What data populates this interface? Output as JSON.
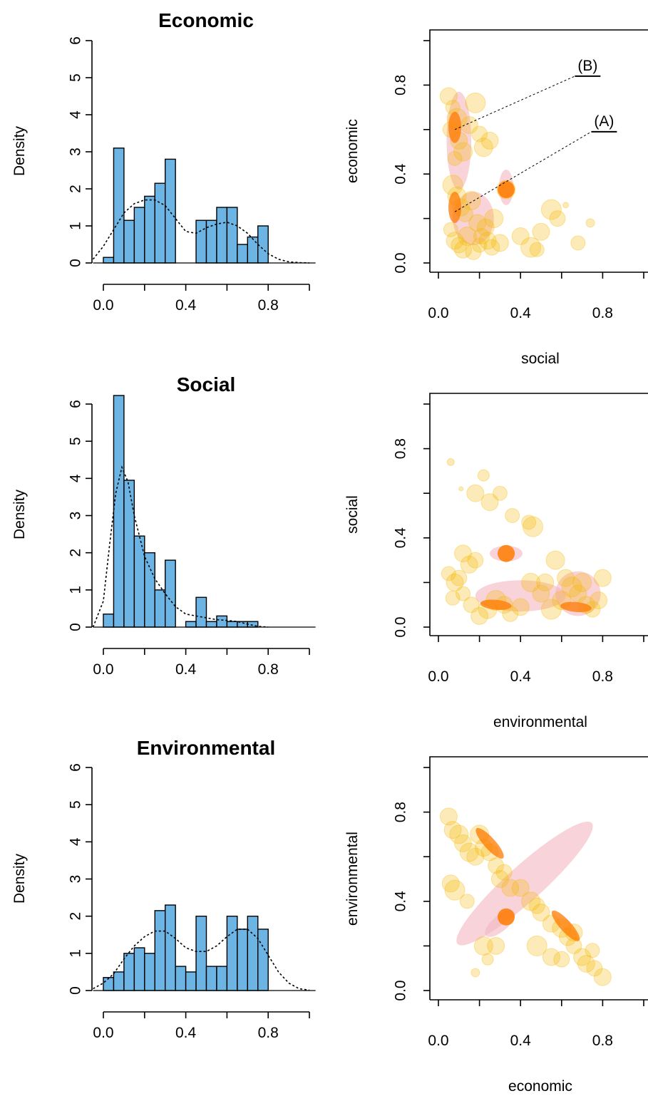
{
  "chart_data": [
    {
      "type": "bar",
      "title": "Economic",
      "ylabel": "Density",
      "xlim": [
        0,
        1
      ],
      "ylim": [
        0,
        6
      ],
      "x_ticks": [
        "0.0",
        "0.4",
        "0.8"
      ],
      "y_ticks": [
        "0",
        "1",
        "2",
        "3",
        "4",
        "5",
        "6"
      ],
      "bin_width": 0.05,
      "bins_start": [
        0.0,
        0.05,
        0.1,
        0.15,
        0.2,
        0.25,
        0.3,
        0.45,
        0.5,
        0.55,
        0.6,
        0.65,
        0.7,
        0.75
      ],
      "values": [
        0.15,
        3.1,
        1.15,
        1.5,
        1.8,
        2.15,
        2.8,
        1.15,
        1.15,
        1.5,
        1.5,
        0.5,
        0.7,
        1.0
      ],
      "density_curve": {
        "x": [
          -0.05,
          0.0,
          0.05,
          0.1,
          0.15,
          0.2,
          0.25,
          0.3,
          0.35,
          0.4,
          0.45,
          0.5,
          0.55,
          0.6,
          0.65,
          0.7,
          0.75,
          0.8,
          0.85,
          0.9,
          0.95,
          1.0
        ],
        "y": [
          0.1,
          0.45,
          0.9,
          1.35,
          1.6,
          1.7,
          1.7,
          1.55,
          1.2,
          0.85,
          0.8,
          0.95,
          1.05,
          1.1,
          1.0,
          0.8,
          0.5,
          0.25,
          0.1,
          0.03,
          0.01,
          0.0
        ]
      },
      "bar_color": "#6cb4e4",
      "curve_style": "dotted"
    },
    {
      "type": "bar",
      "title": "Social",
      "ylabel": "Density",
      "xlim": [
        0,
        1
      ],
      "ylim": [
        0,
        6
      ],
      "x_ticks": [
        "0.0",
        "0.4",
        "0.8"
      ],
      "y_ticks": [
        "0",
        "1",
        "2",
        "3",
        "4",
        "5",
        "6"
      ],
      "bin_width": 0.05,
      "bins_start": [
        0.0,
        0.05,
        0.1,
        0.15,
        0.2,
        0.25,
        0.3,
        0.4,
        0.45,
        0.5,
        0.55,
        0.6,
        0.65,
        0.7
      ],
      "values": [
        0.35,
        6.3,
        3.95,
        2.45,
        2.0,
        1.0,
        1.8,
        0.15,
        0.8,
        0.15,
        0.3,
        0.15,
        0.15,
        0.15
      ],
      "density_curve": {
        "x": [
          -0.05,
          0.0,
          0.03,
          0.06,
          0.09,
          0.12,
          0.15,
          0.2,
          0.25,
          0.3,
          0.35,
          0.4,
          0.45,
          0.5,
          0.55,
          0.6,
          0.65,
          0.7,
          0.75,
          0.8
        ],
        "y": [
          0.0,
          0.7,
          2.2,
          3.6,
          4.3,
          3.9,
          3.0,
          1.9,
          1.3,
          0.9,
          0.55,
          0.35,
          0.3,
          0.25,
          0.2,
          0.18,
          0.15,
          0.08,
          0.02,
          0.0
        ]
      },
      "bar_color": "#6cb4e4",
      "curve_style": "dotted"
    },
    {
      "type": "bar",
      "title": "Environmental",
      "ylabel": "Density",
      "xlim": [
        0,
        1
      ],
      "ylim": [
        0,
        6
      ],
      "x_ticks": [
        "0.0",
        "0.4",
        "0.8"
      ],
      "y_ticks": [
        "0",
        "1",
        "2",
        "3",
        "4",
        "5",
        "6"
      ],
      "bin_width": 0.05,
      "bins_start": [
        0.0,
        0.05,
        0.1,
        0.15,
        0.2,
        0.25,
        0.3,
        0.35,
        0.4,
        0.45,
        0.5,
        0.55,
        0.6,
        0.65,
        0.7,
        0.75
      ],
      "values": [
        0.35,
        0.5,
        1.0,
        1.15,
        1.0,
        2.15,
        2.3,
        0.65,
        0.5,
        2.0,
        0.65,
        0.65,
        2.0,
        1.65,
        2.0,
        1.65
      ],
      "density_curve": {
        "x": [
          -0.05,
          0.0,
          0.05,
          0.1,
          0.15,
          0.2,
          0.25,
          0.3,
          0.35,
          0.4,
          0.45,
          0.5,
          0.55,
          0.6,
          0.65,
          0.7,
          0.75,
          0.8,
          0.85,
          0.9,
          0.95,
          1.0
        ],
        "y": [
          0.05,
          0.2,
          0.45,
          0.85,
          1.2,
          1.45,
          1.6,
          1.6,
          1.4,
          1.15,
          1.05,
          1.05,
          1.2,
          1.45,
          1.65,
          1.65,
          1.4,
          0.95,
          0.5,
          0.2,
          0.05,
          0.01
        ]
      },
      "bar_color": "#6cb4e4",
      "curve_style": "dotted"
    },
    {
      "type": "scatter",
      "xlabel": "social",
      "ylabel": "economic",
      "xlim": [
        0,
        1
      ],
      "ylim": [
        0,
        1
      ],
      "x_ticks": [
        "0.0",
        "0.4",
        "0.8"
      ],
      "y_ticks": [
        "0.0",
        "0.4",
        "0.8"
      ],
      "points": {
        "x": [
          0.05,
          0.07,
          0.09,
          0.06,
          0.1,
          0.12,
          0.08,
          0.15,
          0.18,
          0.2,
          0.22,
          0.25,
          0.07,
          0.09,
          0.11,
          0.13,
          0.16,
          0.19,
          0.21,
          0.24,
          0.27,
          0.06,
          0.08,
          0.1,
          0.12,
          0.14,
          0.17,
          0.2,
          0.23,
          0.26,
          0.3,
          0.33,
          0.45,
          0.48,
          0.55,
          0.58,
          0.62,
          0.68,
          0.74,
          0.4,
          0.5
        ],
        "y": [
          0.75,
          0.7,
          0.65,
          0.6,
          0.55,
          0.5,
          0.47,
          0.62,
          0.72,
          0.58,
          0.52,
          0.55,
          0.35,
          0.3,
          0.25,
          0.22,
          0.28,
          0.18,
          0.12,
          0.1,
          0.2,
          0.15,
          0.1,
          0.08,
          0.06,
          0.12,
          0.05,
          0.08,
          0.16,
          0.07,
          0.09,
          0.33,
          0.07,
          0.06,
          0.24,
          0.2,
          0.26,
          0.09,
          0.18,
          0.12,
          0.14
        ],
        "size": [
          12,
          10,
          14,
          11,
          12,
          13,
          10,
          12,
          14,
          11,
          13,
          12,
          14,
          13,
          12,
          11,
          13,
          12,
          11,
          12,
          13,
          10,
          12,
          11,
          12,
          13,
          11,
          10,
          12,
          11,
          12,
          13,
          14,
          10,
          14,
          11,
          4,
          10,
          6,
          12,
          12
        ]
      },
      "highlight_points": [
        {
          "x": 0.33,
          "y": 0.33
        }
      ],
      "density_regions": [
        {
          "cx": 0.1,
          "cy": 0.45,
          "level": "outer"
        },
        {
          "cx": 0.08,
          "cy": 0.61,
          "level": "core"
        },
        {
          "cx": 0.08,
          "cy": 0.25,
          "level": "core"
        }
      ],
      "annotations": [
        {
          "label": "(B)",
          "x": 0.08,
          "y": 0.6
        },
        {
          "label": "(A)",
          "x": 0.08,
          "y": 0.23
        }
      ],
      "point_color": "#f5b800",
      "core_color": "#ff7a00",
      "region_color": "#f4b6c0"
    },
    {
      "type": "scatter",
      "xlabel": "environmental",
      "ylabel": "social",
      "xlim": [
        0,
        1
      ],
      "ylim": [
        0,
        1
      ],
      "x_ticks": [
        "0.0",
        "0.4",
        "0.8"
      ],
      "y_ticks": [
        "0.0",
        "0.4",
        "0.8"
      ],
      "points": {
        "x": [
          0.06,
          0.11,
          0.18,
          0.22,
          0.25,
          0.3,
          0.36,
          0.44,
          0.46,
          0.05,
          0.08,
          0.1,
          0.12,
          0.15,
          0.18,
          0.2,
          0.24,
          0.28,
          0.32,
          0.35,
          0.4,
          0.45,
          0.5,
          0.55,
          0.6,
          0.62,
          0.65,
          0.68,
          0.7,
          0.72,
          0.75,
          0.78,
          0.8,
          0.57,
          0.52,
          0.12,
          0.16,
          0.07
        ],
        "y": [
          0.74,
          0.62,
          0.6,
          0.68,
          0.56,
          0.6,
          0.5,
          0.47,
          0.45,
          0.24,
          0.2,
          0.22,
          0.33,
          0.28,
          0.3,
          0.05,
          0.08,
          0.12,
          0.1,
          0.06,
          0.09,
          0.2,
          0.15,
          0.08,
          0.12,
          0.22,
          0.18,
          0.15,
          0.2,
          0.1,
          0.08,
          0.12,
          0.22,
          0.3,
          0.2,
          0.15,
          0.1,
          0.13
        ],
        "size": [
          5,
          3,
          12,
          8,
          12,
          10,
          10,
          10,
          14,
          10,
          12,
          11,
          12,
          12,
          11,
          12,
          13,
          14,
          12,
          11,
          12,
          13,
          12,
          14,
          13,
          12,
          14,
          12,
          13,
          12,
          11,
          12,
          12,
          13,
          12,
          10,
          11,
          10
        ]
      },
      "highlight_points": [
        {
          "x": 0.33,
          "y": 0.33
        }
      ],
      "density_regions": [
        {
          "cx": 0.4,
          "cy": 0.15,
          "level": "outer"
        },
        {
          "cx": 0.28,
          "cy": 0.1,
          "level": "core"
        },
        {
          "cx": 0.67,
          "cy": 0.09,
          "level": "core"
        }
      ],
      "point_color": "#f5b800",
      "core_color": "#ff7a00",
      "region_color": "#f4b6c0"
    },
    {
      "type": "scatter",
      "xlabel": "economic",
      "ylabel": "environmental",
      "xlim": [
        0,
        1
      ],
      "ylim": [
        0,
        1
      ],
      "x_ticks": [
        "0.0",
        "0.4",
        "0.8"
      ],
      "y_ticks": [
        "0.0",
        "0.4",
        "0.8"
      ],
      "points": {
        "x": [
          0.05,
          0.07,
          0.1,
          0.12,
          0.15,
          0.18,
          0.2,
          0.22,
          0.25,
          0.28,
          0.3,
          0.32,
          0.35,
          0.4,
          0.45,
          0.48,
          0.5,
          0.55,
          0.6,
          0.63,
          0.66,
          0.7,
          0.72,
          0.76,
          0.8,
          0.06,
          0.08,
          0.14,
          0.18,
          0.24,
          0.28,
          0.22,
          0.48,
          0.55,
          0.6,
          0.66,
          0.75
        ],
        "y": [
          0.78,
          0.72,
          0.7,
          0.66,
          0.62,
          0.6,
          0.7,
          0.64,
          0.62,
          0.56,
          0.5,
          0.53,
          0.46,
          0.46,
          0.4,
          0.38,
          0.35,
          0.3,
          0.28,
          0.24,
          0.2,
          0.15,
          0.12,
          0.1,
          0.06,
          0.48,
          0.45,
          0.4,
          0.08,
          0.14,
          0.2,
          0.2,
          0.2,
          0.15,
          0.14,
          0.26,
          0.18
        ],
        "size": [
          12,
          12,
          13,
          12,
          13,
          12,
          13,
          12,
          12,
          11,
          12,
          11,
          12,
          12,
          13,
          11,
          12,
          12,
          13,
          12,
          11,
          12,
          12,
          11,
          12,
          12,
          14,
          10,
          6,
          8,
          12,
          13,
          14,
          12,
          11,
          12,
          10
        ]
      },
      "highlight_points": [
        {
          "x": 0.33,
          "y": 0.33
        }
      ],
      "density_regions": [
        {
          "cx": 0.42,
          "cy": 0.48,
          "level": "outer"
        },
        {
          "cx": 0.25,
          "cy": 0.66,
          "level": "core"
        },
        {
          "cx": 0.62,
          "cy": 0.29,
          "level": "core"
        }
      ],
      "point_color": "#f5b800",
      "core_color": "#ff7a00",
      "region_color": "#f4b6c0"
    }
  ]
}
